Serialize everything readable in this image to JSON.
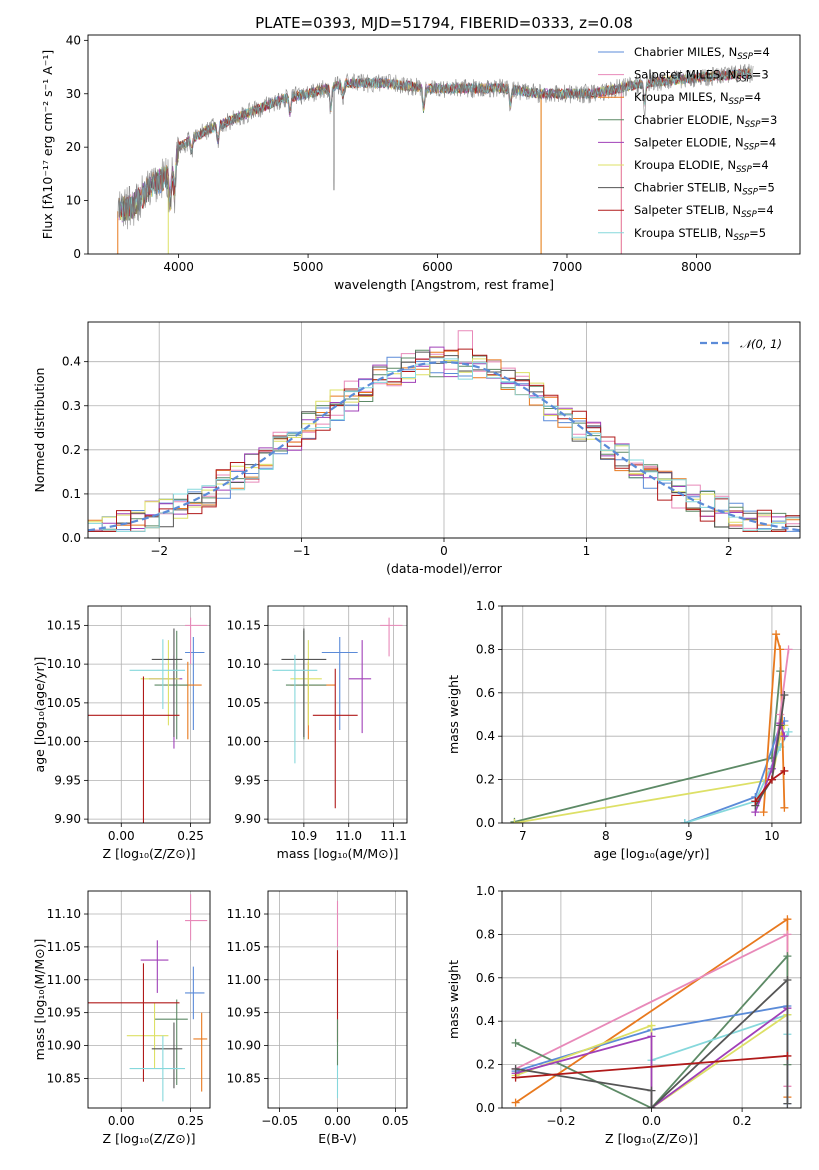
{
  "colors": {
    "chabrier_miles": "#5b8bd8",
    "salpeter_miles": "#e889b9",
    "kroupa_miles": "#e8791e",
    "chabrier_elodie": "#5d8a66",
    "salpeter_elodie": "#a040b8",
    "kroupa_elodie": "#dde066",
    "chabrier_stelib": "#555555",
    "salpeter_stelib": "#b01a1a",
    "kroupa_stelib": "#86d8dc",
    "grid": "#b0b0b0",
    "gauss": "#5b8bd8"
  },
  "chart_data": [
    {
      "id": "spectrum",
      "type": "line",
      "title": "PLATE=0393, MJD=51794, FIBERID=0333, z=0.08",
      "xlabel": "wavelength [Angstrom, rest frame]",
      "ylabel": "Flux [fλ10⁻¹⁷ erg cm⁻² s⁻¹ A⁻¹]",
      "xlim": [
        3300,
        8800
      ],
      "ylim": [
        0,
        41
      ],
      "xticks": [
        "4000",
        "5000",
        "6000",
        "7000",
        "8000"
      ],
      "yticks": [
        "0",
        "10",
        "20",
        "30",
        "40"
      ],
      "grid": false,
      "legend_position": "top-right",
      "legend": [
        {
          "pre": "Chabrier MILES, N",
          "sub": "SSP",
          "post": "=4"
        },
        {
          "pre": "Salpeter MILES, N",
          "sub": "SSP",
          "post": "=3"
        },
        {
          "pre": "Kroupa MILES, N",
          "sub": "SSP",
          "post": "=4"
        },
        {
          "pre": "Chabrier ELODIE, N",
          "sub": "SSP",
          "post": "=3"
        },
        {
          "pre": "Salpeter ELODIE, N",
          "sub": "SSP",
          "post": "=4"
        },
        {
          "pre": "Kroupa ELODIE, N",
          "sub": "SSP",
          "post": "=4"
        },
        {
          "pre": "Chabrier STELIB, N",
          "sub": "SSP",
          "post": "=5"
        },
        {
          "pre": "Salpeter STELIB, N",
          "sub": "SSP",
          "post": "=4"
        },
        {
          "pre": "Kroupa STELIB, N",
          "sub": "SSP",
          "post": "=5"
        }
      ],
      "continuum": [
        [
          3530,
          8
        ],
        [
          3650,
          9
        ],
        [
          3800,
          13
        ],
        [
          3950,
          15
        ],
        [
          4000,
          20
        ],
        [
          4200,
          23
        ],
        [
          4500,
          26
        ],
        [
          4800,
          29
        ],
        [
          5000,
          30
        ],
        [
          5300,
          32
        ],
        [
          5600,
          32
        ],
        [
          5900,
          31
        ],
        [
          6200,
          31
        ],
        [
          6500,
          31
        ],
        [
          6800,
          30
        ],
        [
          7200,
          30
        ],
        [
          7600,
          32
        ],
        [
          8000,
          33
        ],
        [
          8500,
          34
        ]
      ]
    },
    {
      "id": "residuals",
      "type": "histogram",
      "xlabel": "(data-model)/error",
      "ylabel": "Normed distribution",
      "xlim": [
        -2.5,
        2.5
      ],
      "ylim": [
        0,
        0.49
      ],
      "xticks": [
        "−2",
        "−1",
        "0",
        "1",
        "2"
      ],
      "yticks": [
        "0.0",
        "0.1",
        "0.2",
        "0.3",
        "0.4"
      ],
      "grid": true,
      "legend_position": "top-right",
      "gauss_label": "𝒩(0, 1)",
      "bins": 50,
      "peak_value": 0.47
    },
    {
      "id": "age_vs_z",
      "type": "errorbar",
      "xlabel": "Z [log₁₀(Z/Z⊙)]",
      "ylabel": "age  [log₁₀(age/yr)]",
      "xlim": [
        -0.12,
        0.32
      ],
      "ylim": [
        9.895,
        10.175
      ],
      "xticks": [
        "0.00",
        "0.25"
      ],
      "yticks": [
        "9.90",
        "9.95",
        "10.00",
        "10.05",
        "10.10",
        "10.15"
      ],
      "grid": true,
      "points": [
        {
          "c": "chabrier_miles",
          "x": 0.26,
          "xe": [
            0.03,
            0.04
          ],
          "y": 10.115,
          "ye": [
            0.1,
            0.02
          ]
        },
        {
          "c": "salpeter_miles",
          "x": 0.25,
          "xe": [
            0.02,
            0.06
          ],
          "y": 10.15,
          "ye": [
            0.05,
            0.01
          ]
        },
        {
          "c": "kroupa_miles",
          "x": 0.24,
          "xe": [
            0.03,
            0.05
          ],
          "y": 10.073,
          "ye": [
            0.07,
            0.03
          ]
        },
        {
          "c": "chabrier_elodie",
          "x": 0.2,
          "xe": [
            0.08,
            0.04
          ],
          "y": 10.073,
          "ye": [
            0.07,
            0.07
          ]
        },
        {
          "c": "salpeter_elodie",
          "x": 0.19,
          "xe": [
            0.09,
            0.03
          ],
          "y": 10.081,
          "ye": [
            0.09,
            0.03
          ]
        },
        {
          "c": "kroupa_elodie",
          "x": 0.17,
          "xe": [
            0.1,
            0.04
          ],
          "y": 10.081,
          "ye": [
            0.06,
            0.05
          ]
        },
        {
          "c": "chabrier_stelib",
          "x": 0.19,
          "xe": [
            0.08,
            0.03
          ],
          "y": 10.106,
          "ye": [
            0.1,
            0.04
          ]
        },
        {
          "c": "salpeter_stelib",
          "x": 0.08,
          "xe": [
            0.21,
            0.13
          ],
          "y": 10.034,
          "ye": [
            0.14,
            0.05
          ]
        },
        {
          "c": "kroupa_stelib",
          "x": 0.15,
          "xe": [
            0.12,
            0.08
          ],
          "y": 10.092,
          "ye": [
            0.05,
            0.04
          ]
        }
      ]
    },
    {
      "id": "age_vs_mass",
      "type": "errorbar",
      "xlabel": "mass [log₁₀(M/M⊙)]",
      "xlim": [
        10.82,
        11.13
      ],
      "ylim": [
        9.895,
        10.175
      ],
      "xticks": [
        "10.9",
        "11.0",
        "11.1"
      ],
      "yticks": [
        "9.90",
        "9.95",
        "10.00",
        "10.05",
        "10.10",
        "10.15"
      ],
      "grid": true,
      "points": [
        {
          "c": "chabrier_miles",
          "x": 10.98,
          "xe": [
            0.04,
            0.04
          ],
          "y": 10.115,
          "ye": [
            0.1,
            0.02
          ]
        },
        {
          "c": "salpeter_miles",
          "x": 11.09,
          "xe": [
            0.02,
            0.03
          ],
          "y": 10.15,
          "ye": [
            0.04,
            0.01
          ]
        },
        {
          "c": "kroupa_miles",
          "x": 10.91,
          "xe": [
            0.04,
            0.06
          ],
          "y": 10.073,
          "ye": [
            0.07,
            0.03
          ]
        },
        {
          "c": "chabrier_elodie",
          "x": 10.9,
          "xe": [
            0.04,
            0.05
          ],
          "y": 10.073,
          "ye": [
            0.07,
            0.07
          ]
        },
        {
          "c": "salpeter_elodie",
          "x": 11.03,
          "xe": [
            0.03,
            0.02
          ],
          "y": 10.081,
          "ye": [
            0.07,
            0.05
          ]
        },
        {
          "c": "kroupa_elodie",
          "x": 10.91,
          "xe": [
            0.04,
            0.03
          ],
          "y": 10.081,
          "ye": [
            0.06,
            0.05
          ]
        },
        {
          "c": "chabrier_stelib",
          "x": 10.9,
          "xe": [
            0.05,
            0.05
          ],
          "y": 10.106,
          "ye": [
            0.1,
            0.04
          ]
        },
        {
          "c": "salpeter_stelib",
          "x": 10.97,
          "xe": [
            0.05,
            0.05
          ],
          "y": 10.034,
          "ye": [
            0.12,
            0.06
          ]
        },
        {
          "c": "kroupa_stelib",
          "x": 10.88,
          "xe": [
            0.05,
            0.05
          ],
          "y": 10.092,
          "ye": [
            0.12,
            0.02
          ]
        }
      ]
    },
    {
      "id": "massweight_vs_age",
      "type": "line",
      "xlabel": "age  [log₁₀(age/yr)]",
      "ylabel": "mass weight",
      "xlim": [
        6.75,
        10.35
      ],
      "ylim": [
        0,
        1.0
      ],
      "xticks": [
        "7",
        "8",
        "9",
        "10"
      ],
      "yticks": [
        "0.0",
        "0.2",
        "0.4",
        "0.6",
        "0.8",
        "1.0"
      ],
      "grid": true,
      "series": [
        {
          "c": "chabrier_elodie",
          "x": [
            6.9,
            10.0,
            10.1
          ],
          "y": [
            0.005,
            0.3,
            0.7
          ]
        },
        {
          "c": "kroupa_elodie",
          "x": [
            6.9,
            10.0,
            10.1,
            10.15
          ],
          "y": [
            0.0,
            0.2,
            0.4,
            0.45
          ]
        },
        {
          "c": "chabrier_miles",
          "x": [
            8.95,
            9.8,
            10.1,
            10.15
          ],
          "y": [
            0.0,
            0.12,
            0.45,
            0.47
          ]
        },
        {
          "c": "kroupa_stelib",
          "x": [
            8.95,
            9.8,
            10.1,
            10.2
          ],
          "y": [
            0.0,
            0.1,
            0.35,
            0.42
          ]
        },
        {
          "c": "kroupa_miles",
          "x": [
            9.9,
            10.05,
            10.1,
            10.15
          ],
          "y": [
            0.05,
            0.87,
            0.8,
            0.07
          ]
        },
        {
          "c": "salpeter_miles",
          "x": [
            10.0,
            10.1,
            10.2
          ],
          "y": [
            0.2,
            0.5,
            0.8
          ]
        },
        {
          "c": "salpeter_elodie",
          "x": [
            9.8,
            10.0,
            10.1,
            10.15
          ],
          "y": [
            0.05,
            0.25,
            0.46,
            0.4
          ]
        },
        {
          "c": "chabrier_stelib",
          "x": [
            9.8,
            10.0,
            10.1,
            10.15
          ],
          "y": [
            0.08,
            0.2,
            0.45,
            0.59
          ]
        },
        {
          "c": "salpeter_stelib",
          "x": [
            9.8,
            10.0,
            10.15
          ],
          "y": [
            0.1,
            0.2,
            0.24
          ]
        }
      ]
    },
    {
      "id": "mass_vs_z",
      "type": "errorbar",
      "xlabel": "Z [log₁₀(Z/Z⊙)]",
      "ylabel": "mass [log₁₀(M/M⊙)]",
      "xlim": [
        -0.12,
        0.32
      ],
      "ylim": [
        10.805,
        11.135
      ],
      "xticks": [
        "0.00",
        "0.25"
      ],
      "yticks": [
        "10.85",
        "10.90",
        "10.95",
        "11.00",
        "11.05",
        "11.10"
      ],
      "grid": true,
      "points": [
        {
          "c": "chabrier_miles",
          "x": 0.26,
          "xe": [
            0.03,
            0.04
          ],
          "y": 10.98,
          "ye": [
            0.04,
            0.04
          ]
        },
        {
          "c": "salpeter_miles",
          "x": 0.25,
          "xe": [
            0.02,
            0.06
          ],
          "y": 11.09,
          "ye": [
            0.03,
            0.04
          ]
        },
        {
          "c": "kroupa_miles",
          "x": 0.29,
          "xe": [
            0.03,
            0.02
          ],
          "y": 10.91,
          "ye": [
            0.08,
            0.04
          ]
        },
        {
          "c": "chabrier_elodie",
          "x": 0.2,
          "xe": [
            0.08,
            0.04
          ],
          "y": 10.94,
          "ye": [
            0.1,
            0.03
          ]
        },
        {
          "c": "salpeter_elodie",
          "x": 0.13,
          "xe": [
            0.06,
            0.04
          ],
          "y": 11.03,
          "ye": [
            0.05,
            0.03
          ]
        },
        {
          "c": "kroupa_elodie",
          "x": 0.12,
          "xe": [
            0.1,
            0.05
          ],
          "y": 10.915,
          "ye": [
            0.05,
            0.05
          ]
        },
        {
          "c": "chabrier_stelib",
          "x": 0.19,
          "xe": [
            0.08,
            0.03
          ],
          "y": 10.895,
          "ye": [
            0.06,
            0.04
          ]
        },
        {
          "c": "salpeter_stelib",
          "x": 0.08,
          "xe": [
            0.21,
            0.13
          ],
          "y": 10.965,
          "ye": [
            0.12,
            0.06
          ]
        },
        {
          "c": "kroupa_stelib",
          "x": 0.15,
          "xe": [
            0.12,
            0.08
          ],
          "y": 10.865,
          "ye": [
            0.05,
            0.05
          ]
        }
      ]
    },
    {
      "id": "mass_vs_ebv",
      "type": "errorbar",
      "xlabel": "E(B-V)",
      "xlim": [
        -0.06,
        0.06
      ],
      "ylim": [
        10.805,
        11.135
      ],
      "xticks": [
        "−0.05",
        "0.00",
        "0.05"
      ],
      "yticks": [
        "10.85",
        "10.90",
        "10.95",
        "11.00",
        "11.05",
        "11.10"
      ],
      "grid": true,
      "points": [
        {
          "c": "salpeter_miles",
          "x": 0.0,
          "xe": [
            0,
            0
          ],
          "y": 11.09,
          "ye": [
            0.04,
            0.03
          ]
        },
        {
          "c": "salpeter_stelib",
          "x": 0.0,
          "xe": [
            0,
            0
          ],
          "y": 10.965,
          "ye": [
            0.06,
            0.08
          ]
        },
        {
          "c": "kroupa_stelib",
          "x": 0.0,
          "xe": [
            0,
            0
          ],
          "y": 10.86,
          "ye": [
            0.04,
            0.03
          ]
        },
        {
          "c": "chabrier_elodie",
          "x": 0.0,
          "xe": [
            0,
            0
          ],
          "y": 10.91,
          "ye": [
            0.04,
            0.03
          ]
        }
      ]
    },
    {
      "id": "massweight_vs_z",
      "type": "line",
      "xlabel": "Z [log₁₀(Z/Z⊙)]",
      "ylabel": "mass weight",
      "xlim": [
        -0.33,
        0.33
      ],
      "ylim": [
        0,
        1.0
      ],
      "xticks": [
        "−0.2",
        "0.0",
        "0.2"
      ],
      "yticks": [
        "0.0",
        "0.2",
        "0.4",
        "0.6",
        "0.8",
        "1.0"
      ],
      "grid": true,
      "series": [
        {
          "c": "kroupa_miles",
          "x": [
            -0.3,
            0.3,
            0.3
          ],
          "y": [
            0.025,
            0.87,
            0.05
          ]
        },
        {
          "c": "salpeter_miles",
          "x": [
            -0.3,
            0.3,
            0.3
          ],
          "y": [
            0.18,
            0.8,
            0.1
          ]
        },
        {
          "c": "chabrier_elodie",
          "x": [
            -0.3,
            0.0,
            0.3,
            0.3
          ],
          "y": [
            0.3,
            0.0,
            0.7,
            0.2
          ]
        },
        {
          "c": "chabrier_miles",
          "x": [
            -0.3,
            0.0,
            0.3,
            0.3
          ],
          "y": [
            0.17,
            0.36,
            0.47,
            0.02
          ]
        },
        {
          "c": "kroupa_stelib",
          "x": [
            0.0,
            0.0,
            0.3,
            0.3
          ],
          "y": [
            0.0,
            0.22,
            0.43,
            0.34
          ]
        },
        {
          "c": "kroupa_elodie",
          "x": [
            -0.3,
            0.0,
            0.0,
            0.3
          ],
          "y": [
            0.15,
            0.38,
            0.0,
            0.43
          ]
        },
        {
          "c": "salpeter_elodie",
          "x": [
            -0.3,
            0.0,
            0.0,
            0.3
          ],
          "y": [
            0.16,
            0.33,
            0.0,
            0.46
          ]
        },
        {
          "c": "chabrier_stelib",
          "x": [
            -0.3,
            0.0,
            0.0,
            0.3,
            0.3
          ],
          "y": [
            0.18,
            0.08,
            0.0,
            0.59,
            0.02
          ]
        },
        {
          "c": "salpeter_stelib",
          "x": [
            -0.3,
            0.3
          ],
          "y": [
            0.14,
            0.24
          ]
        }
      ]
    }
  ]
}
